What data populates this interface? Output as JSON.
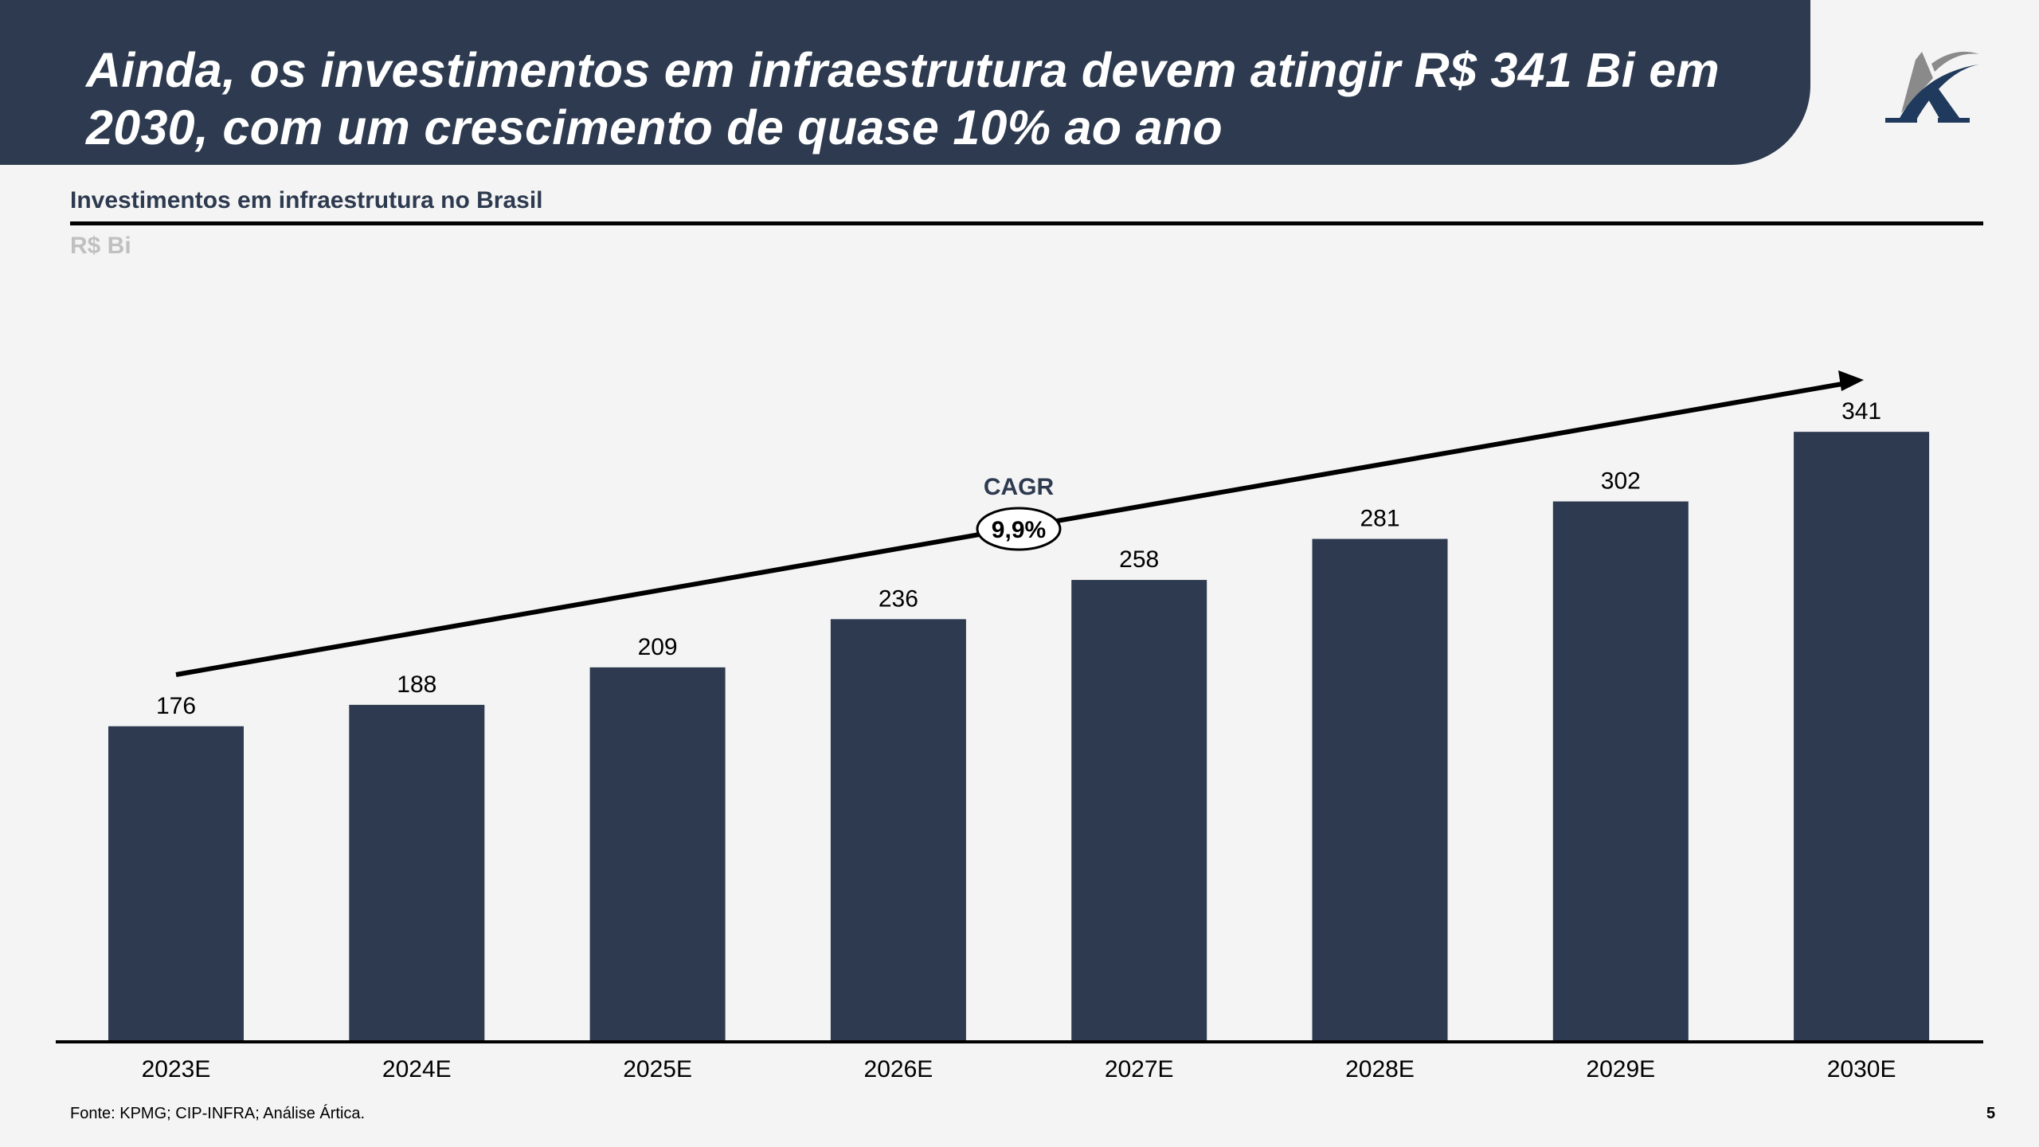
{
  "header": {
    "title": "Ainda, os investimentos em infraestrutura devem atingir R$ 341 Bi em 2030, com um crescimento de quase 10% ao ano"
  },
  "logo": {
    "icon": "artica-a-logo",
    "colors": {
      "primary": "#1f3a5c",
      "secondary": "#8a8a8a"
    }
  },
  "colors": {
    "header_bg": "#2d3a4f",
    "bar": "#2d3a4f",
    "background": "#f4f4f4",
    "unit_text": "#c0c0c0"
  },
  "chart_data": {
    "type": "bar",
    "title": "Investimentos em infraestrutura no Brasil",
    "unit_label": "R$ Bi",
    "xlabel": "",
    "ylabel": "R$ Bi",
    "categories": [
      "2023E",
      "2024E",
      "2025E",
      "2026E",
      "2027E",
      "2028E",
      "2029E",
      "2030E"
    ],
    "values": [
      176,
      188,
      209,
      236,
      258,
      281,
      302,
      341
    ],
    "data_labels": [
      "176",
      "188",
      "209",
      "236",
      "258",
      "281",
      "302",
      "341"
    ],
    "ylim": [
      0,
      360
    ],
    "grid": false,
    "legend": "none",
    "annotation": {
      "type": "trend-arrow",
      "label": "CAGR",
      "value": "9,9%",
      "from_category": "2023E",
      "to_category": "2030E"
    }
  },
  "footer": {
    "source": "Fonte: KPMG; CIP-INFRA; Análise Ártica.",
    "page_number": "5"
  }
}
